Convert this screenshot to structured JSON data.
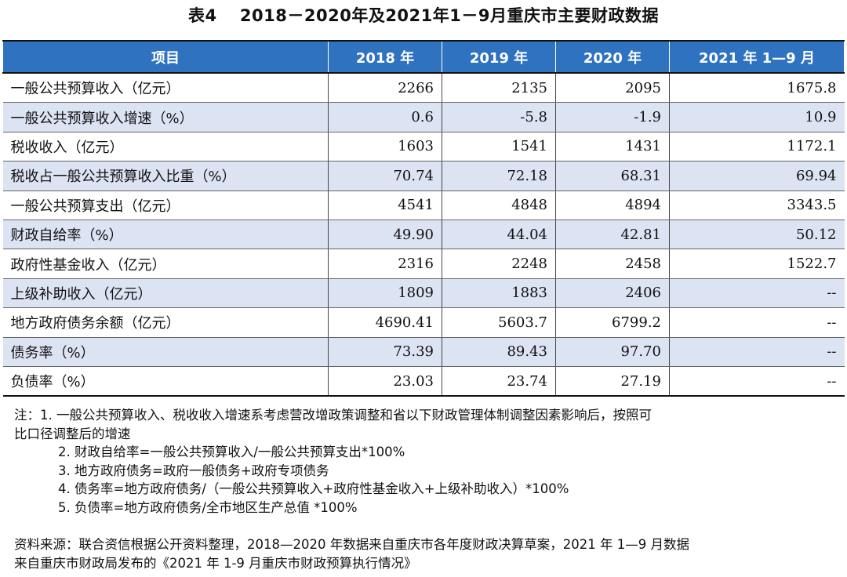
{
  "title": "表4　 2018－2020年及2021年1－9月重庆市主要财政数据",
  "table": {
    "headers": [
      "项目",
      "2018 年",
      "2019 年",
      "2020 年",
      "2021 年 1—9 月"
    ],
    "rows": [
      [
        "一般公共预算收入（亿元）",
        "2266",
        "2135",
        "2095",
        "1675.8"
      ],
      [
        "一般公共预算收入增速（%）",
        "0.6",
        "-5.8",
        "-1.9",
        "10.9"
      ],
      [
        "税收收入（亿元）",
        "1603",
        "1541",
        "1431",
        "1172.1"
      ],
      [
        "税收占一般公共预算收入比重（%）",
        "70.74",
        "72.18",
        "68.31",
        "69.94"
      ],
      [
        "一般公共预算支出（亿元）",
        "4541",
        "4848",
        "4894",
        "3343.5"
      ],
      [
        "财政自给率（%）",
        "49.90",
        "44.04",
        "42.81",
        "50.12"
      ],
      [
        "政府性基金收入（亿元）",
        "2316",
        "2248",
        "2458",
        "1522.7"
      ],
      [
        "上级补助收入（亿元）",
        "1809",
        "1883",
        "2406",
        "--"
      ],
      [
        "地方政府债务余额（亿元）",
        "4690.41",
        "5603.7",
        "6799.2",
        "--"
      ],
      [
        "债务率（%）",
        "73.39",
        "89.43",
        "97.70",
        "--"
      ],
      [
        "负债率（%）",
        "23.03",
        "23.74",
        "27.19",
        "--"
      ]
    ]
  },
  "notes": {
    "line1": "注：1. 一般公共预算收入、税收收入增速系考虑营改增政策调整和省以下财政管理体制调整因素影响后，按照可",
    "line1b": "比口径调整后的增速",
    "line2": "2. 财政自给率=一般公共预算收入/一般公共预算支出*100%",
    "line3": "3. 地方政府债务=政府一般债务+政府专项债务",
    "line4": "4. 债务率=地方政府债务/（一般公共预算收入+政府性基金收入+上级补助收入）*100%",
    "line5": "5. 负债率=地方政府债务/全市地区生产总值 *100%"
  },
  "source": {
    "line1": "资料来源：联合资信根据公开资料整理，2018—2020 年数据来自重庆市各年度财政决算草案，2021 年 1—9 月数据",
    "line2": "来自重庆市财政局发布的《2021 年 1-9 月重庆市财政预算执行情况》"
  },
  "colors": {
    "header_bg": "#2e72c0",
    "stripe_bg": "#dce3f2"
  }
}
